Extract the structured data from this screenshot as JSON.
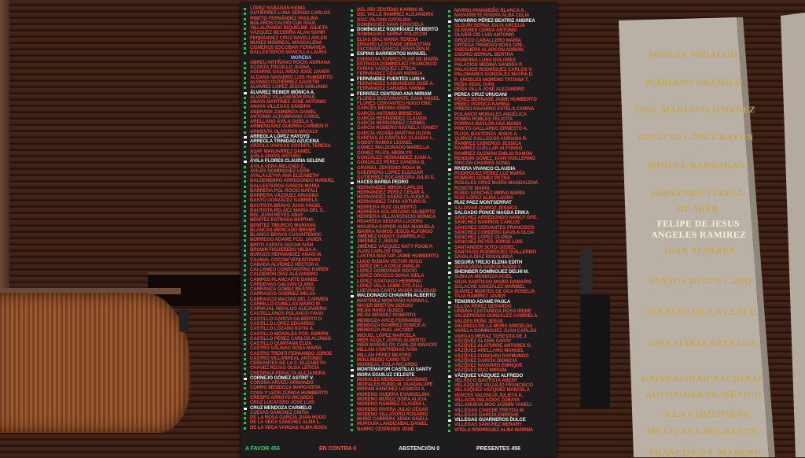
{
  "board": {
    "party_header": "MORENA",
    "colors": {
      "green_dot": "#2fbf4f",
      "name_red": "#ef4a3a",
      "highlight_white": "#f4f1f1",
      "board_bg": "#1e1c1d"
    },
    "totals": {
      "favor": "A FAVOR 456",
      "contra": "EN CONTRA 0",
      "abstencion": "ABSTENCIÓN 0",
      "presentes": "PRESENTES 456"
    },
    "highlighted": [
      "ÁLVAREZ REINER MÓNICA A.",
      "ARREOLA LÓPEZ HAYDYD",
      "ARREOLA TRINIDAD AZUCENA",
      "ÁVILA FLORES CLAUDIA SELENE",
      "CORNEJO GÓMEZ ASTRIT V.",
      "CRUZ MENDOZA CARMELO",
      "DOMÍNGUEZ RODRÍGUEZ ROBERTO",
      "ESPINO BARRIENTOS MANUEL",
      "FERNÁNDEZ FUENTES LUIS H.",
      "FERRÁEZ CENTENO ANA MIRIAM",
      "HACES BARBA PEDRO",
      "MALDONADO CHAVARÍN ALBERTO",
      "MONTEMAYOR CASTILLO SANTY",
      "MORA EGUILUZ CELESTE",
      "NAVARRO PÉREZ BEATRIZ ANDREA",
      "PEREA CRUZ URUGANI",
      "RIVERA VIVANCO CLAUDIA",
      "RUIZ PAEZ MONTSERRAT",
      "SALGADO PONCE MAGDA ERIKA",
      "SEGURA TREJO ELENA EDITH",
      "SHEINBER DOMÍNGUEZ DELHI M.",
      "TENORIO ADAME PAOLA",
      "VÁZQUEZ VÁZQUEZ ALFREDO",
      "VILLEGAS GUARNEROS DULCE"
    ],
    "columns": [
      {
        "names": [
          "LÓPEZ RABADÁN KENIA",
          "GUTIÉRREZ LUNA SERGIO CARLOS",
          "RIBETO FERNÁNDEZ PAULINA",
          "BOLAÑOS CACHO CUE RAÚL",
          "VILLALPANDO RIQUELME JULIETA",
          "VÁZQUEZ BECERRA ALAN SAHIR",
          "FERNÁNDEZ CRUZ NAYELI ARLEN",
          "MUÑEZ MONREAL MAGDALENA",
          "CISNEROS ESCOBAR FERNANDA",
          "BALLESTEROS MANCILLA LAURA",
          "MORENA",
          "ABREU ARTIÑANO ROCÍO ADRIANA",
          "ACOSTA TRUJILLO JUANA",
          "AGUIRRE GALLARDO JOSÉ JAVIER",
          "ALDANA NAVARRO LUIS HUMBERTO",
          "ALONSO GUTIÉRREZ AGUSTÍN",
          "ÁLVAREZ LÓPEZ JESÚS EMILIANO",
          "ÁLVAREZ REINER MÓNICA A.",
          "ÁLVAREZ VILLASEÑOR RAÚL",
          "ANAYA MARTÍNEZ JOSÉ ANTONIO",
          "ANAYA VILLEGAS SANDRA",
          "ANDRADE ZAMBRIZA DANIEL",
          "ANTONIO ALTAMIRANO CAROL",
          "ARELLANO ÁVILA GISELA Y.",
          "ARMENDÁRIZ GUERRA CARMEN P.",
          "ARMENTA OLIVEROS MACALY",
          "ARREOLA LÓPEZ HAYDYD",
          "ARREOLA TRINIDAD AZUCENA",
          "ARZOLA VARGAS XOCHITL TERESA",
          "ASAF MANJARREZ DANIEL",
          "ÁVILA ANAYA ARTURO",
          "ÁVILA FLORES CLAUDIA SELENE",
          "ÁVILA VERA MELENDI C.",
          "AVILÉS DOMÍNGUEZ LEÓN",
          "AYALA LEYVA ANA ELIZABETH",
          "BALDENEBRO ARREDONDO MANUEL",
          "BALLESTEROS GARCÍA MARÍA",
          "BARRERA POL ROCÍO NATALÍ",
          "BARRERA VÁZQUEZ ARIADNA",
          "BASTO GONZÁLEZ GABRIELA",
          "BAUTISTA BRAVO JUAN ÁNGEL",
          "BAUTISTA PELÁEZ MARÍA DEL C.",
          "BEL JUAN REYES ANAY",
          "BENÍTEZ ESTRADA BERTHA",
          "BENÍTEZ TIBURCIO MARIANA",
          "BLANCAS MERCADO BRUNO",
          "BLANCO BRAVO CUAUHTÉMOC",
          "BORREGO ADAME FCO. JAVIER",
          "BRITO ZAPATA OSCAR IVÁN",
          "BROWN FIGUEREDO HILDA A.",
          "BURGOS HERNÁNDEZ ANAÍS M.",
          "CAAMAL COCOM VENUSTIANO",
          "CABADA ALVÍDREZ HÉCTOR A.",
          "CALCANEO CONSTANTINO KAREN",
          "CALDERÓN DÍAZ ALEJANDRO",
          "CAMPOS PLANCARTE DANIEL",
          "CÁRDENAS GALVÁN CLARA",
          "CARRANZA GÓMEZ BEATRIZ",
          "CARRASCO GODÍNEZ MELVA",
          "CARRASCO MACÍAS DEL CARMEN",
          "CARRILLO CUBILLAS MARIO M.",
          "CARVAJAL HIDALGO ALEJANDRO",
          "CASTELLANOS POLANCO FAVIO",
          "CASTILLO GARCÍA GILBERTO D.",
          "CASTILLO LÓPEZ EDUARDO",
          "CASTILLO LOZANO KATIA A.",
          "CASTILLO MORALES FCO. ADRIÁN",
          "CASTILLO PÉREZ CARLOS ALONSO",
          "CASTILLO QUINTANA ELDA",
          "CASTRO SALINAS ROSA MARÍA",
          "CASTRO TRENTI FERNANDO JORGE",
          "CASTRO VILLARREAL ANTONIO",
          "CERVANTES DE LA C. ELIZABETH",
          "CHÁVEZ ROJAS OLGA LETICIA",
          "CHEDRAUI PERALTA ALEJANDRA",
          "CORNEJO GÓMEZ ASTRIT V.",
          "CORONA ARVIZU ARMANDO",
          "CORRO MENDOZA MARGARITA",
          "COSS Y LEÓN ZÚÑIGA HUMBERTO",
          "CRESPO ARROYO RICARDO",
          "CRUZ LUCATERO JOSÉ LUIS",
          "CRUZ MENDOZA CARMELO",
          "CUEVAS SÁNCHEZ CINTIA",
          "DE LA ROSA GARCÍA JUAN HUGO",
          "DE LA VEGA SÁNCHEZ ALMA L.",
          "DE LA VEGA VARGAS ALMA ROSA"
        ]
      },
      {
        "names": [
          "DEL RÍO ZENTENO KARINA M.",
          "DEL VALLE RAMÍREZ ALEJANDRA",
          "DÍAZ VILCHIS CATALINA",
          "DOMÍNGUEZ NAVA GRACIELA",
          "DOMÍNGUEZ RODRÍGUEZ ROBERTO",
          "DOMÍNGUEZ SERNA YOLOCZIN",
          "ELÍAS DÍAZ MARÍA TERESA",
          "ERNARD LESTRADE SEBASTIÁN",
          "ESCOBAR GARCÍA ZENYAZEN R.",
          "ESPINO BARRIENTOS MANUEL",
          "ESPINOSA TORRES FLOR DE MARÍA",
          "ESTRADA DOMÍNGUEZ FRANCISCO",
          "FARÍAS VÁZQUEZ LETICIA",
          "FERNÁNDEZ CÉSAR MÓNICA",
          "FERNÁNDEZ FUENTES LUIS H.",
          "FERNÁNDEZ SAMANIEGO JOSÉ A.",
          "FERNÁNDEZ SARABIA YARMA",
          "FERRÁEZ CENTENO ANA MIRIAM",
          "FLORES BUSTAMANTE JUAN ÁNGEL",
          "FLORES CERVANTES HUGO ERIC",
          "GARCÉS MEDINA EDEN",
          "GARCÍA ANTONIO BRISEYDA",
          "GARCÍA HERNÁNDEZ CLAUDIA",
          "GARCÍA HERNÁNDEZ CARMEL",
          "GARCÍA ROMERO RAFAELA VIANEY",
          "GARCÍA VIDAÑA MARTHA OLIVIA",
          "GARFIAS ALCÁNTARA CLAUDIA L.",
          "GODOY RAMOS LEONEL",
          "GÓMEZ MALDONADO MABELLA",
          "GÓMEZ PUJOL MERILYN",
          "GONZÁLEZ HERNÁNDEZ JUAN A.",
          "GONZÁLEZ PÉREZ SANDRA B.",
          "GRANIEL ZENTENO ROSA M.",
          "GUERRERO LÓPEZ ELEAZAR",
          "GUTIÉRREZ ROCANEGRA JULIO E.",
          "HACES BARBA PEDRO",
          "HERNÁNDEZ MIRÓN CARLOS",
          "HERNÁNDEZ PÉREZ CÉSAR A.",
          "HERNÁNDEZ SÁENZ CLAUDIA A.",
          "HERNÁNDEZ TAPIA ARTURO R.",
          "HERRERA RUIZ GILBERTO",
          "HERRERA SOLORZANO GILBERTO",
          "HERRERA VILLAVICENCIO MÓNICA",
          "HIGAREDA SEGURA LUCERO",
          "HIGUERA ESPIER ALMA MANUELA",
          "IBARRA RAMOS JESÚS ALFONSO",
          "JIMÉNEZ GODOY GABRIELA C.",
          "JIMÉNEZ J. JESÚS",
          "JIMÉNEZ VÁZQUEZ NATY POOB P.",
          "JUAN CARLOS TINA",
          "LASTRA BASTAR JAIME HUMBERTO",
          "LUGO ROMÁN VÍCTOR HUGO",
          "LÓPEZ DE LA CRUZ AMALIA",
          "LÓPEZ GORDONER ROCÍO",
          "LÓPEZ OROZCO DIANA ISELA",
          "LÓPEZ SANTIAGO HERMINIA",
          "LÓPEZ VELA JAIME CITLALLI",
          "LUEVANO CANTU MARÍA SOLEDAD",
          "MALDONADO CHAVARÍN ALBERTO",
          "MARTÍNEZ MONTAÑO KARINA L.",
          "MAYER BRETÓN SERGIO",
          "MEJÍA HARO ULISES",
          "MEJÍA MÉNDEZ ROBERTO",
          "MENDOZA ARCE FERNANDO",
          "MENDOZA RAMÍREZ EUNICE A.",
          "MENDOZA RUIZ JACOBO",
          "MIGUEL LÓPEZ MARCELA",
          "MIER ACOLT JORGE ALBERTO",
          "MIER BAÑUELOS CARLOS IGNACIO",
          "MILLÁN CONTRERAS IVÁN",
          "MILLÁN PÉREZ BEATRIZ",
          "MOLLINEDO CANO TEY",
          "MONREAL ÁVILA RICARDO",
          "MONTEMAYOR CASTILLO SANTY",
          "MORA EGUILUZ CELESTE",
          "MORALES MENDOZA GAUDINO",
          "MORALES RUBIO M. GUADALUPE",
          "MORÁN SÁNCHEZ LEONCIO A.",
          "MORENO GUERRA EVANGELINA",
          "MORENO MUÑOZ DORA ALICIA",
          "MORENO RAMÍREZ CLAUDIA L.",
          "MORENO RIVERA JULIO CÉSAR",
          "MORENO VILLATORO ROSARIO",
          "MUÑIZ CABRERA XENIA GISELL",
          "MURGUÍA LANDIZÁBAL DANIEL",
          "NARRO CÉSPEDES JOSÉ"
        ]
      },
      {
        "names": [
          "NARRO PANAMEÑO BLANCA A.",
          "NAVARRETE RIVERA ALBA CELIA",
          "NAVARRO PÉREZ BEATRIZ ANDREA",
          "OLGUÍN SERNA JULIA ARCELIA",
          "OLIVARES CERDA ANTONIO",
          "OLIVER CID LUIS ANTONIO",
          "OROZCO CABALLERO MARÍA",
          "ORTEGA TRINIDAD ROSA GPE.",
          "OSEGUERA ALARCÓN ADRIÁN",
          "OSORIO BERNAL BERTHA",
          "PADIERNA LUNA DOLORES",
          "PALACIOS MEDINA SANDRA P.",
          "PALACIOS RODRÍGUEZ CARLOS V.",
          "PALOMARES GONZÁLEZ MAYRA D.",
          "P. ÁNGELES MORENO TATIANA T.",
          "PEÑA VIDAL IVÁN",
          "PEÑA VILLA JOSÉ ALEJANDRO",
          "PEREA CRUZ URUGANI",
          "PÉREZ BERNABÉ JAIME HUMBERTO",
          "PÉREZ POPOCA KARINA",
          "PIÑERO NAVARRO ESTELA CARINA",
          "POLANCO MORALES ANGÉLICA",
          "POMPA ROBLES FELICITA",
          "PORRAS BAYLÓN ANA MARÍA",
          "PRIETO GALLARDO ERNESTO A.",
          "PUJOL BASTORZA JESÚS A.",
          "QUIROZ GALLEGOS ADRIANA R.",
          "RAMÍREZ CISNEROS JESSICA",
          "RAMÍREZ CUÉLLAR ALFONSO",
          "RAMÍREZ GUZMÁN EMILIO RAMÓN",
          "RENDÓN GÓMEZ JUAN GUILLERMO",
          "RINCÓN CHAIRES SONIA",
          "RIVERA VIVANCO CLAUDIA",
          "RODRÍGUEZ PÉREZ LUZ MARÍA",
          "ROMERO GÓMEZ PETRA",
          "ROSALES CRUZ MARÍA MAGDALENA",
          "ROSETE MARÍA",
          "RUBIO SÁNCHEZ MIRNA MARÍA",
          "RUIZ LÓPEZ ALMA LAURA",
          "RUIZ PAEZ MONTSERRAT",
          "SALDIVAR QUIROZ JESSICA",
          "SALGADO PONCE MAGDA ERIKA",
          "SÁNCHEZ ARREDONDO NANCY GPE.",
          "SÁNCHEZ BARRIOS CARLOS",
          "SÁNCHEZ CERVANTES FRANCISCO",
          "SÁNCHEZ CORDERO DÁVILA OLGA",
          "SÁNCHEZ LÓPEZ GLORIA",
          "SÁNCHEZ REYES JORGE LUIS",
          "SANTANDER SOTO GISSEL",
          "SANTIAGO RODRÍGUEZ GUILLERMO",
          "SAVALA DÍAZ ROSALINDA",
          "SEGURA TREJO ELENA EDITH",
          "SEPÚLVEDA GARCÍA NADIA Y.",
          "SHEINBER DOMÍNGUEZ DELHI M.",
          "SUBAJA MENDOZA ACIEL",
          "SILVA SANTIAGO MARÍA DAMARIS",
          "SOLACHE GONZÁLEZ MARIBEL",
          "SUÁREZ MONTES DE OCA ROSELIA",
          "TAJA RAMÍREZ JAVIER",
          "TENORIO ADAME PAOLA",
          "ULLOA PÉREZ GERARDO",
          "URBINA CASTAÑEDA ROSA IRENE",
          "VALDEPEÑAS GONZÁLEZ GABRIELA",
          "VALDÉS PEÑA JESÚS",
          "VALENCIA DE LA MORA GRICELDA",
          "VARELA DOMÍNGUEZ JUAN CARLOS",
          "VARGAS MERAZ TERESITA DE J.",
          "VÁZQUEZ ALANIS SARAY",
          "VÁZQUEZ ALATORRE ANTARES G.",
          "VÁZQUEZ ARELLANO MANUEL",
          "VÁZQUEZ CONCHAS RAYMUNDO",
          "VÁZQUEZ GARCÍA DIONICIA",
          "VÁZQUEZ NAVARRO ENRIQUE",
          "VÁZQUEZ RUIZ MIRIAM",
          "VÁZQUEZ VÁZQUEZ ALFREDO",
          "VELASCO BAUTISTA ABENY",
          "VELÁZQUEZ VALLEJO FRANCISCO",
          "VELÁZQUEZ VÁZQUEZ MARCELA",
          "VENCES VALENCIA JULIETA K.",
          "VILLACIS PALACIOS ZORAYA",
          "VILLANUEVA MOO JAZMÍN YANELI",
          "VILLEGAS CANCHE FREYDA M.",
          "VILLEGAS GARCÍA ENRIQUE",
          "VILLEGAS GUARNEROS DULCE",
          "VILLEGAS SÁNCHEZ MERARY",
          "VITELA RODRÍGUEZ ALMA MARINA"
        ]
      }
    ]
  },
  "pillar": {
    "inscriptions": [
      "MIGUEL HIDALGO",
      "MARIANO ABASOLO",
      "JOSE MARIANO JIMENEZ",
      "IGNACIO LOPEZ RAYON",
      "MIGUEL BARRAGAN",
      "SERVANDO TERESA",
      "DE MIER",
      "FELIPE DE JESUS",
      "ANGELES RAMIREZ",
      "JUAN ALVAREZ",
      "SANTOS DEGOLLADO",
      "IGNACIO DE LA LLAVE",
      "JOSE MARIA ARTEAGA",
      "UNIVERSIDAD NACIONAL",
      "AUTONOMA DE MEXICO",
      "\"A LA COMUNIDAD",
      "MEXICANA MIGRANTE\"",
      "FRANCISCO I. MADERO"
    ],
    "gold_color": "#c9a54e"
  }
}
